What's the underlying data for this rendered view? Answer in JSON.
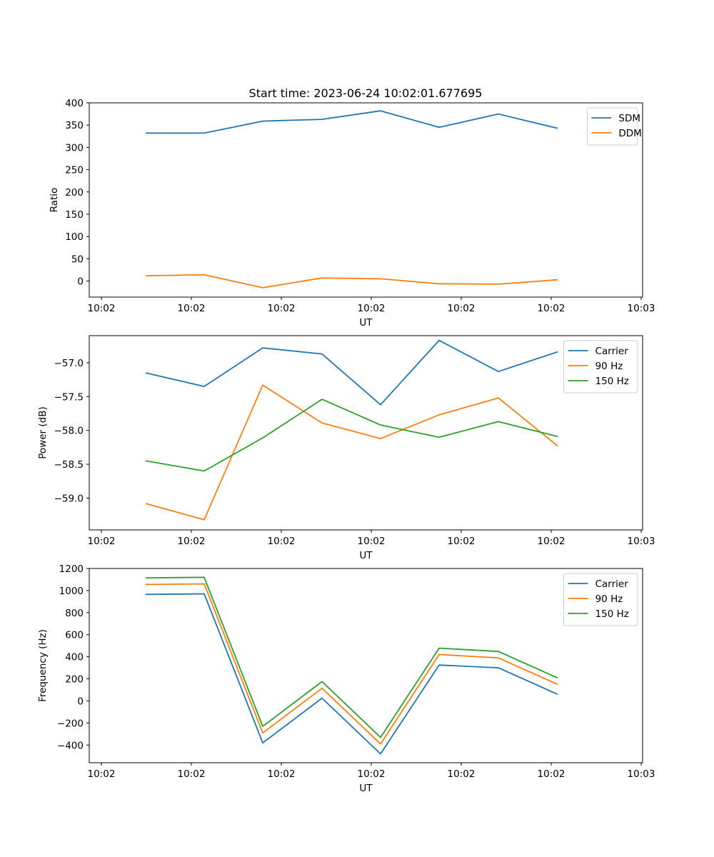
{
  "title": "Start time: 2023-06-24 10:02:01.677695",
  "chart_data": [
    {
      "type": "line",
      "xlabel": "UT",
      "ylabel": "Ratio",
      "x_tick_labels": [
        "10:02",
        "10:02",
        "10:02",
        "10:02",
        "10:02",
        "10:02",
        "10:03"
      ],
      "y_ticks": [
        0,
        50,
        100,
        150,
        200,
        250,
        300,
        350,
        400
      ],
      "ylim": [
        -36,
        400
      ],
      "legend_position": "upper-right",
      "series": [
        {
          "name": "SDM",
          "color": "#1f77b4",
          "values": [
            332,
            332,
            359,
            363,
            382,
            345,
            375,
            343
          ]
        },
        {
          "name": "DDM",
          "color": "#ff7f0e",
          "values": [
            12,
            14,
            -15,
            7,
            5,
            -6,
            -7,
            3
          ]
        }
      ]
    },
    {
      "type": "line",
      "xlabel": "UT",
      "ylabel": "Power (dB)",
      "x_tick_labels": [
        "10:02",
        "10:02",
        "10:02",
        "10:02",
        "10:02",
        "10:02",
        "10:03"
      ],
      "y_ticks": [
        -59.0,
        -58.5,
        -58.0,
        -57.5,
        -57.0
      ],
      "ylim": [
        -59.47,
        -56.6
      ],
      "legend_position": "upper-right",
      "series": [
        {
          "name": "Carrier",
          "color": "#1f77b4",
          "values": [
            -57.15,
            -57.35,
            -56.78,
            -56.87,
            -57.62,
            -56.67,
            -57.13,
            -56.84
          ]
        },
        {
          "name": "90 Hz",
          "color": "#ff7f0e",
          "values": [
            -59.08,
            -59.32,
            -57.33,
            -57.89,
            -58.12,
            -57.77,
            -57.52,
            -58.23
          ]
        },
        {
          "name": "150 Hz",
          "color": "#2ca02c",
          "values": [
            -58.45,
            -58.6,
            -58.11,
            -57.54,
            -57.92,
            -58.1,
            -57.87,
            -58.09
          ]
        }
      ]
    },
    {
      "type": "line",
      "xlabel": "UT",
      "ylabel": "Frequency (Hz)",
      "x_tick_labels": [
        "10:02",
        "10:02",
        "10:02",
        "10:02",
        "10:02",
        "10:02",
        "10:03"
      ],
      "y_ticks": [
        -400,
        -200,
        0,
        200,
        400,
        600,
        800,
        1000,
        1200
      ],
      "ylim": [
        -560,
        1200
      ],
      "legend_position": "upper-right",
      "series": [
        {
          "name": "Carrier",
          "color": "#1f77b4",
          "values": [
            965,
            970,
            -380,
            25,
            -480,
            325,
            300,
            60
          ]
        },
        {
          "name": "90 Hz",
          "color": "#ff7f0e",
          "values": [
            1055,
            1060,
            -290,
            115,
            -390,
            420,
            390,
            150
          ]
        },
        {
          "name": "150 Hz",
          "color": "#2ca02c",
          "values": [
            1115,
            1120,
            -230,
            175,
            -330,
            478,
            448,
            208
          ]
        }
      ]
    }
  ]
}
